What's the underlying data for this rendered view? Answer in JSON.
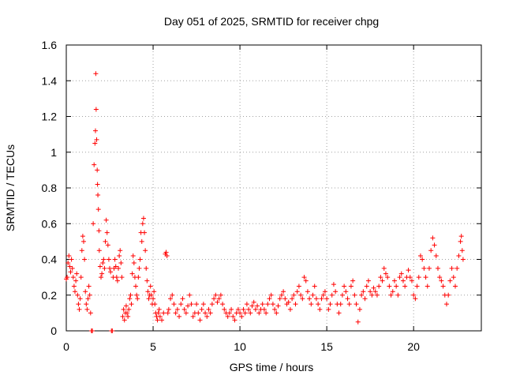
{
  "chart_data": {
    "type": "scatter",
    "title": "Day 051 of 2025, SRMTID for receiver chpg",
    "xlabel": "GPS time / hours",
    "ylabel": "SRMTID / TECUs",
    "xlim": [
      0,
      23.9
    ],
    "ylim": [
      0,
      1.6
    ],
    "xticks": [
      0,
      5,
      10,
      15,
      20
    ],
    "xtick_labels": [
      "0",
      "5",
      "10",
      "15",
      "20"
    ],
    "yticks": [
      0,
      0.2,
      0.4,
      0.6,
      0.8,
      1.0,
      1.2,
      1.4,
      1.6
    ],
    "ytick_labels": [
      "0",
      "0.2",
      "0.4",
      "0.6",
      "0.8",
      "1",
      "1.2",
      "1.4",
      "1.6"
    ],
    "grid": true,
    "marker": "+",
    "series": [
      {
        "name": "SRMTID",
        "color": "#ff0000",
        "points": [
          [
            0.0,
            0.29
          ],
          [
            0.05,
            0.3
          ],
          [
            0.1,
            0.38
          ],
          [
            0.15,
            0.42
          ],
          [
            0.2,
            0.36
          ],
          [
            0.25,
            0.33
          ],
          [
            0.3,
            0.4
          ],
          [
            0.35,
            0.35
          ],
          [
            0.4,
            0.3
          ],
          [
            0.45,
            0.25
          ],
          [
            0.5,
            0.22
          ],
          [
            0.55,
            0.28
          ],
          [
            0.6,
            0.32
          ],
          [
            0.65,
            0.2
          ],
          [
            0.7,
            0.15
          ],
          [
            0.75,
            0.12
          ],
          [
            0.8,
            0.18
          ],
          [
            0.85,
            0.3
          ],
          [
            0.9,
            0.45
          ],
          [
            0.95,
            0.53
          ],
          [
            1.0,
            0.5
          ],
          [
            1.05,
            0.4
          ],
          [
            1.1,
            0.22
          ],
          [
            1.15,
            0.15
          ],
          [
            1.2,
            0.12
          ],
          [
            1.25,
            0.18
          ],
          [
            1.3,
            0.25
          ],
          [
            1.35,
            0.2
          ],
          [
            1.4,
            0.1
          ],
          [
            1.45,
            0.0
          ],
          [
            1.5,
            0.0
          ],
          [
            1.55,
            0.6
          ],
          [
            1.6,
            0.93
          ],
          [
            1.65,
            1.05
          ],
          [
            1.68,
            1.12
          ],
          [
            1.7,
            1.44
          ],
          [
            1.72,
            1.24
          ],
          [
            1.75,
            1.07
          ],
          [
            1.78,
            0.9
          ],
          [
            1.8,
            0.82
          ],
          [
            1.82,
            0.76
          ],
          [
            1.85,
            0.68
          ],
          [
            1.88,
            0.56
          ],
          [
            1.9,
            0.45
          ],
          [
            1.95,
            0.36
          ],
          [
            2.0,
            0.3
          ],
          [
            2.05,
            0.32
          ],
          [
            2.1,
            0.38
          ],
          [
            2.15,
            0.4
          ],
          [
            2.2,
            0.35
          ],
          [
            2.25,
            0.5
          ],
          [
            2.3,
            0.62
          ],
          [
            2.35,
            0.55
          ],
          [
            2.4,
            0.48
          ],
          [
            2.45,
            0.4
          ],
          [
            2.5,
            0.35
          ],
          [
            2.55,
            0.33
          ],
          [
            2.6,
            0.0
          ],
          [
            2.65,
            0.0
          ],
          [
            2.7,
            0.3
          ],
          [
            2.75,
            0.35
          ],
          [
            2.8,
            0.4
          ],
          [
            2.85,
            0.36
          ],
          [
            2.9,
            0.3
          ],
          [
            2.95,
            0.28
          ],
          [
            3.0,
            0.35
          ],
          [
            3.05,
            0.42
          ],
          [
            3.1,
            0.45
          ],
          [
            3.15,
            0.38
          ],
          [
            3.2,
            0.3
          ],
          [
            3.25,
            0.08
          ],
          [
            3.3,
            0.12
          ],
          [
            3.35,
            0.06
          ],
          [
            3.4,
            0.1
          ],
          [
            3.45,
            0.14
          ],
          [
            3.5,
            0.1
          ],
          [
            3.55,
            0.08
          ],
          [
            3.6,
            0.12
          ],
          [
            3.65,
            0.18
          ],
          [
            3.7,
            0.2
          ],
          [
            3.75,
            0.15
          ],
          [
            3.8,
            0.32
          ],
          [
            3.85,
            0.42
          ],
          [
            3.9,
            0.38
          ],
          [
            3.95,
            0.3
          ],
          [
            4.0,
            0.25
          ],
          [
            4.05,
            0.2
          ],
          [
            4.1,
            0.18
          ],
          [
            4.15,
            0.3
          ],
          [
            4.2,
            0.35
          ],
          [
            4.25,
            0.4
          ],
          [
            4.3,
            0.55
          ],
          [
            4.35,
            0.5
          ],
          [
            4.4,
            0.6
          ],
          [
            4.45,
            0.63
          ],
          [
            4.5,
            0.55
          ],
          [
            4.55,
            0.45
          ],
          [
            4.6,
            0.35
          ],
          [
            4.65,
            0.28
          ],
          [
            4.7,
            0.22
          ],
          [
            4.75,
            0.18
          ],
          [
            4.8,
            0.2
          ],
          [
            4.85,
            0.25
          ],
          [
            4.9,
            0.2
          ],
          [
            4.95,
            0.15
          ],
          [
            5.0,
            0.18
          ],
          [
            5.05,
            0.22
          ],
          [
            5.1,
            0.15
          ],
          [
            5.15,
            0.1
          ],
          [
            5.2,
            0.08
          ],
          [
            5.25,
            0.06
          ],
          [
            5.3,
            0.1
          ],
          [
            5.35,
            0.12
          ],
          [
            5.4,
            0.08
          ],
          [
            5.5,
            0.06
          ],
          [
            5.6,
            0.1
          ],
          [
            5.7,
            0.43
          ],
          [
            5.75,
            0.44
          ],
          [
            5.8,
            0.42
          ],
          [
            5.85,
            0.1
          ],
          [
            5.9,
            0.12
          ],
          [
            6.0,
            0.18
          ],
          [
            6.1,
            0.2
          ],
          [
            6.2,
            0.15
          ],
          [
            6.3,
            0.1
          ],
          [
            6.4,
            0.12
          ],
          [
            6.5,
            0.08
          ],
          [
            6.6,
            0.15
          ],
          [
            6.7,
            0.18
          ],
          [
            6.8,
            0.12
          ],
          [
            6.9,
            0.1
          ],
          [
            7.0,
            0.14
          ],
          [
            7.1,
            0.2
          ],
          [
            7.2,
            0.15
          ],
          [
            7.3,
            0.08
          ],
          [
            7.4,
            0.1
          ],
          [
            7.5,
            0.15
          ],
          [
            7.6,
            0.1
          ],
          [
            7.7,
            0.06
          ],
          [
            7.8,
            0.12
          ],
          [
            7.9,
            0.15
          ],
          [
            8.0,
            0.1
          ],
          [
            8.1,
            0.08
          ],
          [
            8.2,
            0.12
          ],
          [
            8.3,
            0.1
          ],
          [
            8.4,
            0.15
          ],
          [
            8.5,
            0.18
          ],
          [
            8.6,
            0.2
          ],
          [
            8.7,
            0.16
          ],
          [
            8.8,
            0.18
          ],
          [
            8.9,
            0.2
          ],
          [
            9.0,
            0.15
          ],
          [
            9.1,
            0.12
          ],
          [
            9.2,
            0.1
          ],
          [
            9.3,
            0.08
          ],
          [
            9.4,
            0.1
          ],
          [
            9.5,
            0.12
          ],
          [
            9.6,
            0.08
          ],
          [
            9.7,
            0.06
          ],
          [
            9.8,
            0.1
          ],
          [
            9.9,
            0.12
          ],
          [
            10.0,
            0.1
          ],
          [
            10.1,
            0.08
          ],
          [
            10.2,
            0.12
          ],
          [
            10.3,
            0.1
          ],
          [
            10.4,
            0.15
          ],
          [
            10.5,
            0.12
          ],
          [
            10.6,
            0.1
          ],
          [
            10.7,
            0.14
          ],
          [
            10.8,
            0.16
          ],
          [
            10.9,
            0.12
          ],
          [
            11.0,
            0.14
          ],
          [
            11.1,
            0.1
          ],
          [
            11.2,
            0.12
          ],
          [
            11.3,
            0.15
          ],
          [
            11.4,
            0.12
          ],
          [
            11.5,
            0.1
          ],
          [
            11.6,
            0.15
          ],
          [
            11.7,
            0.18
          ],
          [
            11.8,
            0.2
          ],
          [
            11.9,
            0.15
          ],
          [
            12.0,
            0.12
          ],
          [
            12.1,
            0.1
          ],
          [
            12.2,
            0.14
          ],
          [
            12.3,
            0.18
          ],
          [
            12.4,
            0.2
          ],
          [
            12.5,
            0.22
          ],
          [
            12.6,
            0.18
          ],
          [
            12.7,
            0.15
          ],
          [
            12.8,
            0.16
          ],
          [
            12.9,
            0.12
          ],
          [
            13.0,
            0.18
          ],
          [
            13.1,
            0.2
          ],
          [
            13.2,
            0.15
          ],
          [
            13.3,
            0.22
          ],
          [
            13.4,
            0.25
          ],
          [
            13.5,
            0.2
          ],
          [
            13.6,
            0.18
          ],
          [
            13.7,
            0.3
          ],
          [
            13.8,
            0.28
          ],
          [
            13.9,
            0.22
          ],
          [
            14.0,
            0.18
          ],
          [
            14.1,
            0.15
          ],
          [
            14.2,
            0.2
          ],
          [
            14.3,
            0.25
          ],
          [
            14.4,
            0.18
          ],
          [
            14.5,
            0.15
          ],
          [
            14.6,
            0.12
          ],
          [
            14.7,
            0.18
          ],
          [
            14.8,
            0.2
          ],
          [
            14.9,
            0.22
          ],
          [
            15.0,
            0.18
          ],
          [
            15.1,
            0.12
          ],
          [
            15.2,
            0.15
          ],
          [
            15.3,
            0.2
          ],
          [
            15.4,
            0.26
          ],
          [
            15.5,
            0.22
          ],
          [
            15.6,
            0.15
          ],
          [
            15.7,
            0.1
          ],
          [
            15.8,
            0.15
          ],
          [
            15.9,
            0.2
          ],
          [
            16.0,
            0.25
          ],
          [
            16.1,
            0.22
          ],
          [
            16.2,
            0.18
          ],
          [
            16.3,
            0.15
          ],
          [
            16.4,
            0.25
          ],
          [
            16.5,
            0.28
          ],
          [
            16.6,
            0.2
          ],
          [
            16.7,
            0.15
          ],
          [
            16.8,
            0.05
          ],
          [
            16.9,
            0.12
          ],
          [
            17.0,
            0.2
          ],
          [
            17.1,
            0.22
          ],
          [
            17.2,
            0.18
          ],
          [
            17.3,
            0.25
          ],
          [
            17.4,
            0.28
          ],
          [
            17.5,
            0.22
          ],
          [
            17.6,
            0.2
          ],
          [
            17.7,
            0.24
          ],
          [
            17.8,
            0.22
          ],
          [
            17.9,
            0.2
          ],
          [
            18.0,
            0.25
          ],
          [
            18.1,
            0.3
          ],
          [
            18.2,
            0.28
          ],
          [
            18.3,
            0.35
          ],
          [
            18.4,
            0.32
          ],
          [
            18.5,
            0.3
          ],
          [
            18.6,
            0.25
          ],
          [
            18.7,
            0.2
          ],
          [
            18.8,
            0.22
          ],
          [
            18.9,
            0.28
          ],
          [
            19.0,
            0.25
          ],
          [
            19.1,
            0.2
          ],
          [
            19.2,
            0.3
          ],
          [
            19.3,
            0.32
          ],
          [
            19.4,
            0.28
          ],
          [
            19.5,
            0.25
          ],
          [
            19.6,
            0.3
          ],
          [
            19.7,
            0.34
          ],
          [
            19.8,
            0.3
          ],
          [
            19.9,
            0.28
          ],
          [
            20.0,
            0.2
          ],
          [
            20.1,
            0.18
          ],
          [
            20.2,
            0.25
          ],
          [
            20.3,
            0.3
          ],
          [
            20.4,
            0.42
          ],
          [
            20.5,
            0.4
          ],
          [
            20.6,
            0.35
          ],
          [
            20.7,
            0.3
          ],
          [
            20.8,
            0.25
          ],
          [
            20.9,
            0.35
          ],
          [
            21.0,
            0.45
          ],
          [
            21.1,
            0.52
          ],
          [
            21.2,
            0.48
          ],
          [
            21.3,
            0.42
          ],
          [
            21.4,
            0.35
          ],
          [
            21.5,
            0.3
          ],
          [
            21.6,
            0.28
          ],
          [
            21.7,
            0.25
          ],
          [
            21.8,
            0.2
          ],
          [
            21.9,
            0.15
          ],
          [
            22.0,
            0.2
          ],
          [
            22.1,
            0.28
          ],
          [
            22.2,
            0.35
          ],
          [
            22.3,
            0.3
          ],
          [
            22.4,
            0.25
          ],
          [
            22.5,
            0.35
          ],
          [
            22.6,
            0.42
          ],
          [
            22.7,
            0.5
          ],
          [
            22.75,
            0.53
          ],
          [
            22.8,
            0.45
          ],
          [
            22.85,
            0.4
          ]
        ]
      }
    ]
  }
}
